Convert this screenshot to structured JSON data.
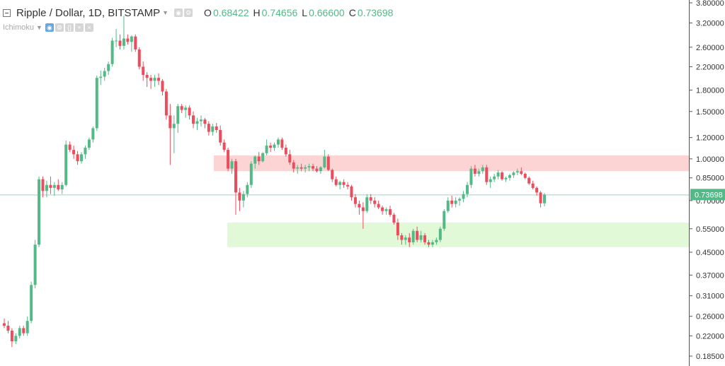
{
  "header": {
    "title": "Ripple / Dollar, 1D, BITSTAMP",
    "ohlc": [
      {
        "key": "O",
        "value": "0.68422"
      },
      {
        "key": "H",
        "value": "0.74656"
      },
      {
        "key": "L",
        "value": "0.66600"
      },
      {
        "key": "C",
        "value": "0.73698"
      }
    ]
  },
  "indicator": {
    "name": "Ichimoku"
  },
  "icons": {
    "collapse": "collapse-square-icon",
    "caret": "chevron-down-icon",
    "eye": "eye-icon",
    "settings": "gear-icon",
    "source": "source-code-icon",
    "add": "plus-icon",
    "close": "close-icon"
  },
  "colors": {
    "up": "#53b987",
    "down": "#eb4d5c",
    "resistance_zone": "#fdd4d4",
    "support_zone": "#e1f9d6",
    "last_price_line": "#9fd3c7",
    "last_price_badge": "#53b987"
  },
  "chart_data": {
    "type": "candlestick",
    "scale": "log",
    "last_price": 0.73698,
    "last_price_label": "0.73698",
    "yticks": [
      "3.80000",
      "3.20000",
      "2.60000",
      "2.20000",
      "1.80000",
      "1.50000",
      "1.20000",
      "1.00000",
      "0.85000",
      "0.70000",
      "0.55000",
      "0.45000",
      "0.37000",
      "0.31000",
      "0.26000",
      "0.22000",
      "0.18500"
    ],
    "zones": [
      {
        "kind": "resistance",
        "from": 0.9,
        "to": 1.03
      },
      {
        "kind": "support",
        "from": 0.47,
        "to": 0.58
      }
    ],
    "candles": [
      [
        0.245,
        0.255,
        0.235,
        0.24
      ],
      [
        0.24,
        0.25,
        0.225,
        0.23
      ],
      [
        0.23,
        0.235,
        0.2,
        0.21
      ],
      [
        0.21,
        0.225,
        0.205,
        0.22
      ],
      [
        0.22,
        0.24,
        0.215,
        0.235
      ],
      [
        0.235,
        0.24,
        0.22,
        0.225
      ],
      [
        0.225,
        0.26,
        0.22,
        0.25
      ],
      [
        0.25,
        0.35,
        0.245,
        0.34
      ],
      [
        0.34,
        0.5,
        0.33,
        0.48
      ],
      [
        0.48,
        0.86,
        0.47,
        0.84
      ],
      [
        0.84,
        0.86,
        0.72,
        0.76
      ],
      [
        0.76,
        0.83,
        0.72,
        0.8
      ],
      [
        0.8,
        0.86,
        0.74,
        0.78
      ],
      [
        0.78,
        0.82,
        0.73,
        0.8
      ],
      [
        0.8,
        0.84,
        0.76,
        0.77
      ],
      [
        0.77,
        0.82,
        0.74,
        0.8
      ],
      [
        0.8,
        1.17,
        0.79,
        1.13
      ],
      [
        1.13,
        1.16,
        1.06,
        1.08
      ],
      [
        1.08,
        1.12,
        1.0,
        1.04
      ],
      [
        1.04,
        1.07,
        0.95,
        0.98
      ],
      [
        0.98,
        1.06,
        0.96,
        1.04
      ],
      [
        1.04,
        1.12,
        1.0,
        1.1
      ],
      [
        1.1,
        1.2,
        1.08,
        1.18
      ],
      [
        1.18,
        1.32,
        1.15,
        1.3
      ],
      [
        1.3,
        2.04,
        1.27,
        2.0
      ],
      [
        2.0,
        2.13,
        1.88,
        2.02
      ],
      [
        2.02,
        2.18,
        1.95,
        2.12
      ],
      [
        2.12,
        2.3,
        2.05,
        2.25
      ],
      [
        2.25,
        2.82,
        2.2,
        2.75
      ],
      [
        2.75,
        3.04,
        2.6,
        2.75
      ],
      [
        2.75,
        2.9,
        2.55,
        2.63
      ],
      [
        2.63,
        3.4,
        2.55,
        2.8
      ],
      [
        2.8,
        2.9,
        2.66,
        2.72
      ],
      [
        2.72,
        2.88,
        2.5,
        2.85
      ],
      [
        2.85,
        2.9,
        2.5,
        2.55
      ],
      [
        2.55,
        2.6,
        2.15,
        2.2
      ],
      [
        2.2,
        2.3,
        1.95,
        2.05
      ],
      [
        2.05,
        2.1,
        1.85,
        2.0
      ],
      [
        2.0,
        2.05,
        1.82,
        1.95
      ],
      [
        1.95,
        2.05,
        1.85,
        2.0
      ],
      [
        2.0,
        2.08,
        1.88,
        1.95
      ],
      [
        1.95,
        1.98,
        1.72,
        1.78
      ],
      [
        1.78,
        1.82,
        1.4,
        1.45
      ],
      [
        1.45,
        1.6,
        0.95,
        1.3
      ],
      [
        1.3,
        1.45,
        1.05,
        1.35
      ],
      [
        1.35,
        1.6,
        1.25,
        1.57
      ],
      [
        1.57,
        1.6,
        1.48,
        1.52
      ],
      [
        1.52,
        1.58,
        1.42,
        1.55
      ],
      [
        1.55,
        1.58,
        1.4,
        1.45
      ],
      [
        1.45,
        1.5,
        1.3,
        1.35
      ],
      [
        1.35,
        1.42,
        1.28,
        1.38
      ],
      [
        1.38,
        1.45,
        1.32,
        1.4
      ],
      [
        1.4,
        1.42,
        1.3,
        1.35
      ],
      [
        1.35,
        1.38,
        1.22,
        1.26
      ],
      [
        1.26,
        1.35,
        1.22,
        1.32
      ],
      [
        1.32,
        1.36,
        1.25,
        1.28
      ],
      [
        1.28,
        1.33,
        1.12,
        1.15
      ],
      [
        1.15,
        1.18,
        1.06,
        1.08
      ],
      [
        1.08,
        1.1,
        0.9,
        0.92
      ],
      [
        0.92,
        1.0,
        0.88,
        0.98
      ],
      [
        0.98,
        1.0,
        0.62,
        0.75
      ],
      [
        0.75,
        0.78,
        0.64,
        0.7
      ],
      [
        0.7,
        0.76,
        0.66,
        0.74
      ],
      [
        0.74,
        0.82,
        0.72,
        0.8
      ],
      [
        0.8,
        0.98,
        0.78,
        0.96
      ],
      [
        0.96,
        1.03,
        0.92,
        1.02
      ],
      [
        1.02,
        1.06,
        0.95,
        0.98
      ],
      [
        0.98,
        1.06,
        0.97,
        1.05
      ],
      [
        1.05,
        1.18,
        1.03,
        1.12
      ],
      [
        1.12,
        1.15,
        1.06,
        1.1
      ],
      [
        1.1,
        1.15,
        1.07,
        1.13
      ],
      [
        1.13,
        1.2,
        1.1,
        1.18
      ],
      [
        1.18,
        1.2,
        1.08,
        1.1
      ],
      [
        1.1,
        1.13,
        1.02,
        1.04
      ],
      [
        1.04,
        1.08,
        0.95,
        0.97
      ],
      [
        0.97,
        0.99,
        0.89,
        0.92
      ],
      [
        0.92,
        0.95,
        0.88,
        0.93
      ],
      [
        0.93,
        0.96,
        0.9,
        0.92
      ],
      [
        0.92,
        0.95,
        0.89,
        0.93
      ],
      [
        0.93,
        0.96,
        0.9,
        0.94
      ],
      [
        0.94,
        0.96,
        0.9,
        0.92
      ],
      [
        0.92,
        0.94,
        0.89,
        0.9
      ],
      [
        0.9,
        0.94,
        0.88,
        0.93
      ],
      [
        0.93,
        1.08,
        0.92,
        1.02
      ],
      [
        1.02,
        1.04,
        0.9,
        0.91
      ],
      [
        0.91,
        0.92,
        0.82,
        0.84
      ],
      [
        0.84,
        0.86,
        0.79,
        0.8
      ],
      [
        0.8,
        0.83,
        0.77,
        0.82
      ],
      [
        0.82,
        0.84,
        0.78,
        0.8
      ],
      [
        0.8,
        0.82,
        0.77,
        0.79
      ],
      [
        0.79,
        0.8,
        0.7,
        0.72
      ],
      [
        0.72,
        0.74,
        0.66,
        0.68
      ],
      [
        0.68,
        0.7,
        0.62,
        0.66
      ],
      [
        0.66,
        0.69,
        0.55,
        0.64
      ],
      [
        0.64,
        0.74,
        0.63,
        0.72
      ],
      [
        0.72,
        0.74,
        0.68,
        0.7
      ],
      [
        0.7,
        0.72,
        0.66,
        0.68
      ],
      [
        0.68,
        0.7,
        0.65,
        0.66
      ],
      [
        0.66,
        0.67,
        0.62,
        0.64
      ],
      [
        0.64,
        0.66,
        0.62,
        0.65
      ],
      [
        0.65,
        0.67,
        0.61,
        0.62
      ],
      [
        0.62,
        0.63,
        0.57,
        0.58
      ],
      [
        0.58,
        0.6,
        0.5,
        0.52
      ],
      [
        0.52,
        0.53,
        0.48,
        0.5
      ],
      [
        0.5,
        0.52,
        0.48,
        0.51
      ],
      [
        0.51,
        0.53,
        0.47,
        0.49
      ],
      [
        0.49,
        0.55,
        0.48,
        0.54
      ],
      [
        0.54,
        0.56,
        0.49,
        0.5
      ],
      [
        0.5,
        0.54,
        0.49,
        0.52
      ],
      [
        0.52,
        0.53,
        0.48,
        0.49
      ],
      [
        0.49,
        0.5,
        0.47,
        0.48
      ],
      [
        0.48,
        0.5,
        0.47,
        0.49
      ],
      [
        0.49,
        0.51,
        0.48,
        0.5
      ],
      [
        0.5,
        0.56,
        0.49,
        0.55
      ],
      [
        0.55,
        0.65,
        0.54,
        0.64
      ],
      [
        0.64,
        0.72,
        0.63,
        0.7
      ],
      [
        0.7,
        0.73,
        0.66,
        0.68
      ],
      [
        0.68,
        0.72,
        0.66,
        0.7
      ],
      [
        0.7,
        0.72,
        0.67,
        0.71
      ],
      [
        0.71,
        0.76,
        0.69,
        0.74
      ],
      [
        0.74,
        0.82,
        0.72,
        0.8
      ],
      [
        0.8,
        0.94,
        0.78,
        0.92
      ],
      [
        0.92,
        0.95,
        0.86,
        0.88
      ],
      [
        0.88,
        0.92,
        0.86,
        0.9
      ],
      [
        0.9,
        0.95,
        0.88,
        0.93
      ],
      [
        0.93,
        0.95,
        0.8,
        0.82
      ],
      [
        0.82,
        0.86,
        0.78,
        0.84
      ],
      [
        0.84,
        0.88,
        0.82,
        0.86
      ],
      [
        0.86,
        0.91,
        0.84,
        0.89
      ],
      [
        0.89,
        0.9,
        0.83,
        0.84
      ],
      [
        0.84,
        0.86,
        0.82,
        0.85
      ],
      [
        0.85,
        0.88,
        0.83,
        0.87
      ],
      [
        0.87,
        0.9,
        0.85,
        0.89
      ],
      [
        0.89,
        0.92,
        0.87,
        0.9
      ],
      [
        0.9,
        0.93,
        0.87,
        0.88
      ],
      [
        0.88,
        0.89,
        0.84,
        0.85
      ],
      [
        0.85,
        0.86,
        0.8,
        0.81
      ],
      [
        0.81,
        0.83,
        0.77,
        0.78
      ],
      [
        0.78,
        0.79,
        0.73,
        0.75
      ],
      [
        0.75,
        0.76,
        0.66,
        0.684
      ],
      [
        0.684,
        0.747,
        0.666,
        0.737
      ]
    ]
  }
}
